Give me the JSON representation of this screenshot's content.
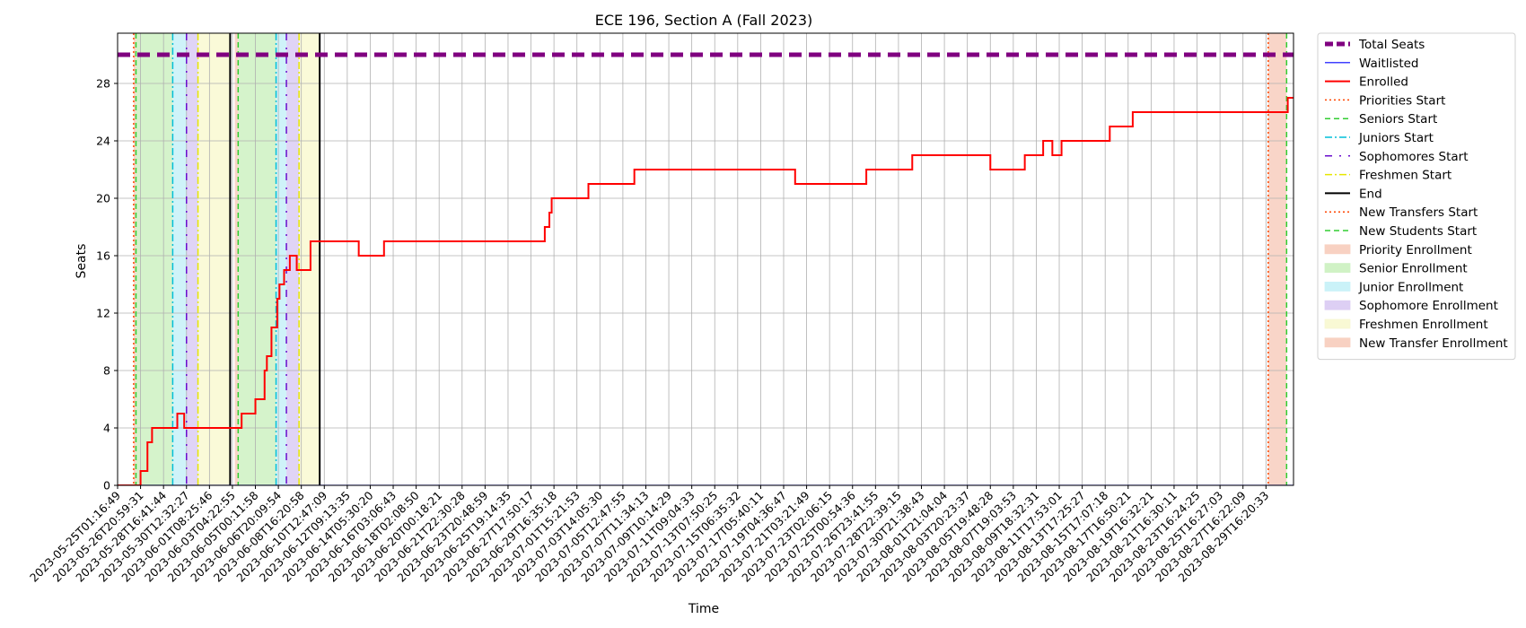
{
  "chart_data": {
    "type": "line",
    "title": "ECE 196, Section A (Fall 2023)",
    "xlabel": "Time",
    "ylabel": "Seats",
    "ylim": [
      0,
      31.5
    ],
    "yticks": [
      0,
      4,
      8,
      12,
      16,
      20,
      24,
      28
    ],
    "grid": true,
    "legend_position": "outside-right",
    "x_ticks": [
      "2023-05-25T01:16:49",
      "2023-05-26T20:59:31",
      "2023-05-28T16:41:44",
      "2023-05-30T12:32:27",
      "2023-06-01T08:25:46",
      "2023-06-03T04:22:55",
      "2023-06-05T00:11:58",
      "2023-06-06T20:09:54",
      "2023-06-08T16:20:58",
      "2023-06-10T12:47:09",
      "2023-06-12T09:13:35",
      "2023-06-14T05:30:20",
      "2023-06-16T03:06:43",
      "2023-06-18T02:08:50",
      "2023-06-20T00:18:21",
      "2023-06-21T22:30:28",
      "2023-06-23T20:48:59",
      "2023-06-25T19:14:35",
      "2023-06-27T17:50:17",
      "2023-06-29T16:35:18",
      "2023-07-01T15:21:53",
      "2023-07-03T14:05:30",
      "2023-07-05T12:47:55",
      "2023-07-07T11:34:13",
      "2023-07-09T10:14:29",
      "2023-07-11T09:04:33",
      "2023-07-13T07:50:25",
      "2023-07-15T06:35:32",
      "2023-07-17T05:40:11",
      "2023-07-19T04:36:47",
      "2023-07-21T03:21:49",
      "2023-07-23T02:06:15",
      "2023-07-25T00:54:36",
      "2023-07-26T23:41:55",
      "2023-07-28T22:39:15",
      "2023-07-30T21:38:43",
      "2023-08-01T21:04:04",
      "2023-08-03T20:23:37",
      "2023-08-05T19:48:28",
      "2023-08-07T19:03:53",
      "2023-08-09T18:32:31",
      "2023-08-11T17:53:01",
      "2023-08-13T17:25:27",
      "2023-08-15T17:07:18",
      "2023-08-17T16:50:21",
      "2023-08-19T16:32:21",
      "2023-08-21T16:30:11",
      "2023-08-23T16:24:25",
      "2023-08-25T16:27:03",
      "2023-08-27T16:22:09",
      "2023-08-29T16:20:33"
    ],
    "x_range": [
      0,
      51.2
    ],
    "total_seats": 30,
    "waitlisted": 0,
    "series": [
      {
        "name": "Total Seats",
        "color": "#800080",
        "style": "dashed-thick",
        "points": [
          [
            0,
            30
          ],
          [
            51.2,
            30
          ]
        ]
      },
      {
        "name": "Waitlisted",
        "color": "#0000ff",
        "style": "solid-thin",
        "points": [
          [
            0,
            0
          ],
          [
            51.2,
            0
          ]
        ]
      },
      {
        "name": "Enrolled",
        "color": "#ff0000",
        "style": "solid",
        "points": [
          [
            0,
            0
          ],
          [
            1.0,
            0
          ],
          [
            1.0,
            1
          ],
          [
            1.3,
            1
          ],
          [
            1.3,
            3
          ],
          [
            1.5,
            3
          ],
          [
            1.5,
            4
          ],
          [
            2.6,
            4
          ],
          [
            2.6,
            5
          ],
          [
            2.9,
            5
          ],
          [
            2.9,
            4
          ],
          [
            5.4,
            4
          ],
          [
            5.4,
            5
          ],
          [
            6.0,
            5
          ],
          [
            6.0,
            6
          ],
          [
            6.4,
            6
          ],
          [
            6.4,
            8
          ],
          [
            6.5,
            8
          ],
          [
            6.5,
            9
          ],
          [
            6.7,
            9
          ],
          [
            6.7,
            11
          ],
          [
            6.95,
            11
          ],
          [
            6.95,
            13
          ],
          [
            7.05,
            13
          ],
          [
            7.05,
            14
          ],
          [
            7.25,
            14
          ],
          [
            7.25,
            15
          ],
          [
            7.5,
            15
          ],
          [
            7.5,
            16
          ],
          [
            7.8,
            16
          ],
          [
            7.8,
            15
          ],
          [
            8.4,
            15
          ],
          [
            8.4,
            17
          ],
          [
            10.5,
            17
          ],
          [
            10.5,
            16
          ],
          [
            11.6,
            16
          ],
          [
            11.6,
            17
          ],
          [
            18.6,
            17
          ],
          [
            18.6,
            18
          ],
          [
            18.8,
            18
          ],
          [
            18.8,
            19
          ],
          [
            18.9,
            19
          ],
          [
            18.9,
            20
          ],
          [
            20.5,
            20
          ],
          [
            20.5,
            21
          ],
          [
            22.5,
            21
          ],
          [
            22.5,
            22
          ],
          [
            29.5,
            22
          ],
          [
            29.5,
            21
          ],
          [
            32.6,
            21
          ],
          [
            32.6,
            22
          ],
          [
            34.6,
            22
          ],
          [
            34.6,
            23
          ],
          [
            38.0,
            23
          ],
          [
            38.0,
            22
          ],
          [
            39.5,
            22
          ],
          [
            39.5,
            23
          ],
          [
            40.3,
            23
          ],
          [
            40.3,
            24
          ],
          [
            40.7,
            24
          ],
          [
            40.7,
            23
          ],
          [
            41.1,
            23
          ],
          [
            41.1,
            24
          ],
          [
            43.2,
            24
          ],
          [
            43.2,
            25
          ],
          [
            44.2,
            25
          ],
          [
            44.2,
            26
          ],
          [
            50.95,
            26
          ],
          [
            50.95,
            27
          ],
          [
            51.2,
            27
          ]
        ]
      }
    ],
    "markers": [
      {
        "name": "Priorities Start",
        "color": "#ff4500",
        "style": "dotted",
        "x": [
          0.7
        ]
      },
      {
        "name": "Seniors Start",
        "color": "#32cd32",
        "style": "dashed",
        "x": [
          0.8,
          5.25
        ]
      },
      {
        "name": "Juniors Start",
        "color": "#00bfd8",
        "style": "dashdot",
        "x": [
          2.4,
          6.9
        ]
      },
      {
        "name": "Sophomores Start",
        "color": "#6a0dcd",
        "style": "dashdot-sparse",
        "x": [
          3.0,
          7.35
        ]
      },
      {
        "name": "Freshmen Start",
        "color": "#e6e600",
        "style": "dashdot",
        "x": [
          3.5,
          7.9
        ]
      },
      {
        "name": "End",
        "color": "#000000",
        "style": "solid",
        "x": [
          4.9,
          8.8
        ]
      },
      {
        "name": "New Transfers Start",
        "color": "#ff4500",
        "style": "dotted",
        "x": [
          50.1
        ]
      },
      {
        "name": "New Students Start",
        "color": "#32cd32",
        "style": "dashed",
        "x": [
          50.9
        ]
      }
    ],
    "spans": [
      {
        "name": "Priority Enrollment",
        "color": "#f4b39a",
        "ranges": [
          [
            0.7,
            0.8
          ],
          [
            5.1,
            5.25
          ]
        ]
      },
      {
        "name": "Senior Enrollment",
        "color": "#b2eaa0",
        "ranges": [
          [
            0.8,
            2.4
          ],
          [
            5.25,
            6.9
          ]
        ]
      },
      {
        "name": "Junior Enrollment",
        "color": "#a8eaf4",
        "ranges": [
          [
            2.4,
            3.0
          ],
          [
            6.9,
            7.35
          ]
        ]
      },
      {
        "name": "Sophomore Enrollment",
        "color": "#c7b0ee",
        "ranges": [
          [
            3.0,
            3.5
          ],
          [
            7.35,
            7.9
          ]
        ]
      },
      {
        "name": "Freshmen Enrollment",
        "color": "#f6f6b8",
        "ranges": [
          [
            3.5,
            4.9
          ],
          [
            7.9,
            8.8
          ]
        ]
      },
      {
        "name": "New Transfer Enrollment",
        "color": "#f4b39a",
        "ranges": [
          [
            50.1,
            50.9
          ]
        ]
      }
    ],
    "legend": [
      {
        "label": "Total Seats",
        "kind": "line",
        "color": "#800080",
        "style": "dashed-thick"
      },
      {
        "label": "Waitlisted",
        "kind": "line",
        "color": "#0000ff",
        "style": "solid-thin"
      },
      {
        "label": "Enrolled",
        "kind": "line",
        "color": "#ff0000",
        "style": "solid"
      },
      {
        "label": "Priorities Start",
        "kind": "line",
        "color": "#ff4500",
        "style": "dotted"
      },
      {
        "label": "Seniors Start",
        "kind": "line",
        "color": "#32cd32",
        "style": "dashed"
      },
      {
        "label": "Juniors Start",
        "kind": "line",
        "color": "#00bfd8",
        "style": "dashdot"
      },
      {
        "label": "Sophomores Start",
        "kind": "line",
        "color": "#6a0dcd",
        "style": "dashdot-sparse"
      },
      {
        "label": "Freshmen Start",
        "kind": "line",
        "color": "#e6e600",
        "style": "dashdot"
      },
      {
        "label": "End",
        "kind": "line",
        "color": "#000000",
        "style": "solid"
      },
      {
        "label": "New Transfers Start",
        "kind": "line",
        "color": "#ff4500",
        "style": "dotted"
      },
      {
        "label": "New Students Start",
        "kind": "line",
        "color": "#32cd32",
        "style": "dashed"
      },
      {
        "label": "Priority Enrollment",
        "kind": "patch",
        "color": "#f4b39a"
      },
      {
        "label": "Senior Enrollment",
        "kind": "patch",
        "color": "#b2eaa0"
      },
      {
        "label": "Junior Enrollment",
        "kind": "patch",
        "color": "#a8eaf4"
      },
      {
        "label": "Sophomore Enrollment",
        "kind": "patch",
        "color": "#c7b0ee"
      },
      {
        "label": "Freshmen Enrollment",
        "kind": "patch",
        "color": "#f6f6b8"
      },
      {
        "label": "New Transfer Enrollment",
        "kind": "patch",
        "color": "#f4b39a"
      }
    ]
  }
}
